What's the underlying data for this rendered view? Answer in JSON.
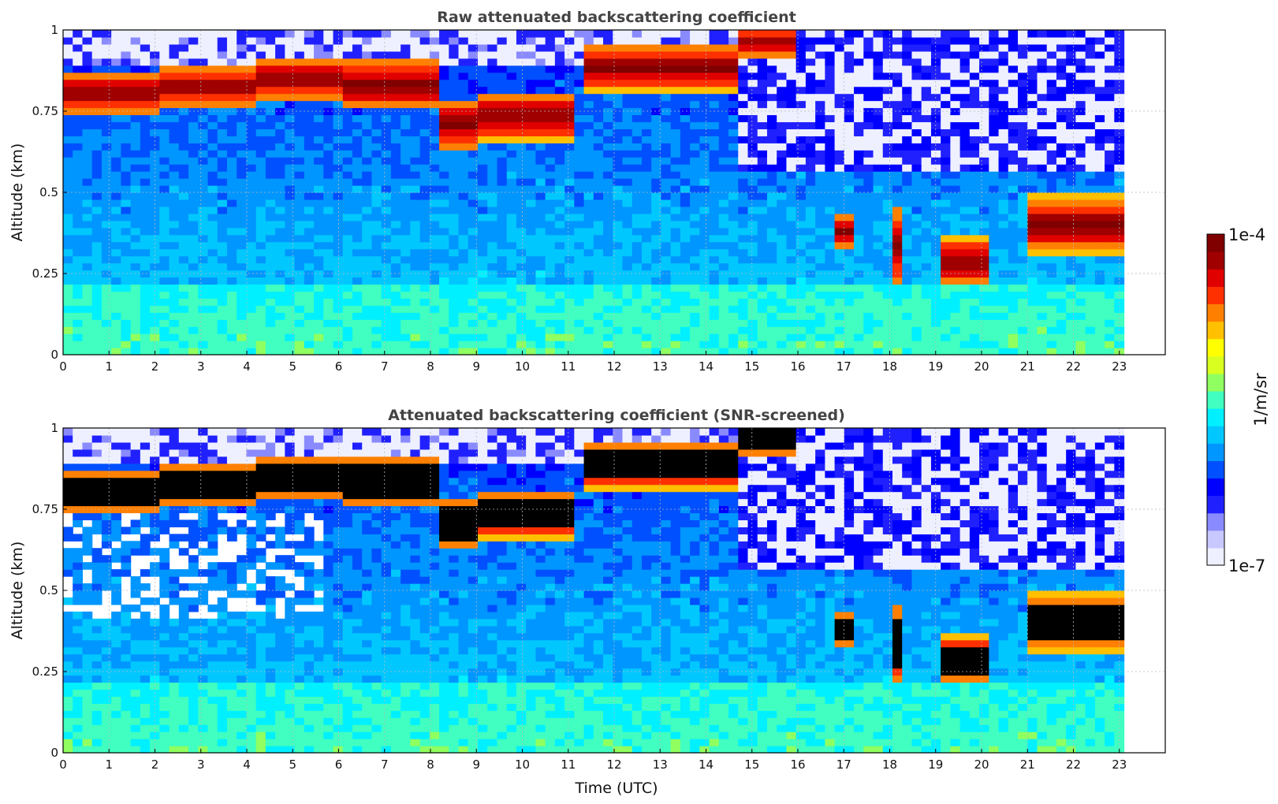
{
  "chart_data": [
    {
      "type": "heatmap",
      "title": "Raw attenuated backscattering coefficient",
      "xlabel": "",
      "ylabel": "Altitude (km)",
      "xlim": [
        0,
        24
      ],
      "ylim": [
        0,
        1
      ],
      "x_ticks": [
        "0",
        "1",
        "2",
        "3",
        "4",
        "5",
        "6",
        "7",
        "8",
        "9",
        "10",
        "11",
        "12",
        "13",
        "14",
        "15",
        "16",
        "17",
        "18",
        "19",
        "20",
        "21",
        "22",
        "23"
      ],
      "y_ticks": [
        "0",
        "0.25",
        "0.5",
        "0.75",
        "1"
      ],
      "data_end_time": 23.1,
      "grid": true,
      "variant": "raw",
      "layers": [
        {
          "name": "cloud-layer",
          "segments": [
            {
              "t": [
                0.0,
                2.0
              ],
              "base": 0.73,
              "top": 0.86
            },
            {
              "t": [
                2.0,
                4.0
              ],
              "base": 0.75,
              "top": 0.88
            },
            {
              "t": [
                4.0,
                6.0
              ],
              "base": 0.77,
              "top": 0.91
            },
            {
              "t": [
                6.0,
                8.0
              ],
              "base": 0.74,
              "top": 0.9
            },
            {
              "t": [
                8.0,
                9.0
              ],
              "base": 0.62,
              "top": 0.78
            },
            {
              "t": [
                9.0,
                11.0
              ],
              "base": 0.65,
              "top": 0.8
            },
            {
              "t": [
                11.2,
                14.6
              ],
              "base": 0.8,
              "top": 0.95
            },
            {
              "t": [
                14.7,
                15.8
              ],
              "base": 0.9,
              "top": 1.0
            },
            {
              "t": [
                16.8,
                17.1
              ],
              "base": 0.32,
              "top": 0.42
            },
            {
              "t": [
                17.9,
                18.2
              ],
              "base": 0.2,
              "top": 0.45
            },
            {
              "t": [
                19.1,
                20.0
              ],
              "base": 0.2,
              "top": 0.35
            },
            {
              "t": [
                21.0,
                23.1
              ],
              "base": 0.3,
              "top": 0.48
            }
          ]
        }
      ]
    },
    {
      "type": "heatmap",
      "title": "Attenuated backscattering coefficient (SNR-screened)",
      "xlabel": "Time (UTC)",
      "ylabel": "Altitude (km)",
      "xlim": [
        0,
        24
      ],
      "ylim": [
        0,
        1
      ],
      "x_ticks": [
        "0",
        "1",
        "2",
        "3",
        "4",
        "5",
        "6",
        "7",
        "8",
        "9",
        "10",
        "11",
        "12",
        "13",
        "14",
        "15",
        "16",
        "17",
        "18",
        "19",
        "20",
        "21",
        "22",
        "23"
      ],
      "y_ticks": [
        "0",
        "0.25",
        "0.5",
        "0.75",
        "1"
      ],
      "data_end_time": 23.1,
      "grid": true,
      "variant": "screened"
    }
  ],
  "colorbar": {
    "max_label": "1e-4",
    "min_label": "1e-7",
    "unit_label": "1/m/sr",
    "colors": [
      "#eef0ff",
      "#c8c8ff",
      "#8a8aff",
      "#2020ff",
      "#0000ff",
      "#0050ff",
      "#0096ff",
      "#00c8ff",
      "#00f0ff",
      "#40ffc0",
      "#90ff60",
      "#d8ff20",
      "#ffff00",
      "#ffc000",
      "#ff8000",
      "#ff3000",
      "#e00000",
      "#a00000",
      "#800000"
    ]
  }
}
